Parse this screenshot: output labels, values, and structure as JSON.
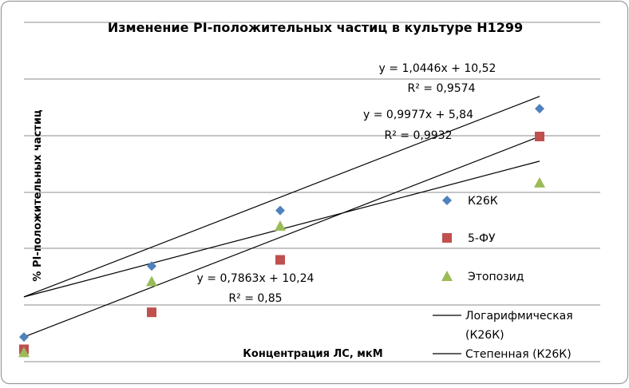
{
  "chart_data": {
    "type": "scatter",
    "title": "Изменение PI-положительных частиц в культуре H1299",
    "xlabel": "Концентрация ЛС, мкМ",
    "ylabel": "% PI-положительных частиц",
    "x": [
      0,
      1,
      2,
      3
    ],
    "ylim": [
      0,
      55
    ],
    "grid": true,
    "legend_position": "right",
    "series": [
      {
        "name": "К26К",
        "marker": "diamond",
        "color": "#4f81bd",
        "values": [
          4,
          15.5,
          24.5,
          41
        ]
      },
      {
        "name": "5-ФУ",
        "marker": "square",
        "color": "#c0504d",
        "values": [
          2,
          8,
          16.5,
          36.5
        ]
      },
      {
        "name": "Этопозид",
        "marker": "triangle",
        "color": "#9bbb59",
        "values": [
          1.5,
          13,
          22,
          29
        ]
      }
    ],
    "trendlines": [
      {
        "equation": "y = 1,0446x + 10,52",
        "r2": "R² = 0,9574",
        "start": 10.5,
        "end": 43
      },
      {
        "equation": "y = 0,9977x + 5,84",
        "r2": "R² = 0,9932",
        "start": 4,
        "end": 36.5
      },
      {
        "equation": "y = 0,7863x + 10,24",
        "r2": "R² = 0,85",
        "start": 10.5,
        "end": 32.5
      }
    ],
    "extra_legend": [
      {
        "label_lines": [
          "Логарифмическая",
          "(К26К)"
        ],
        "color": "#000000"
      },
      {
        "label_lines": [
          "Степенная (К26К)"
        ],
        "color": "#000000"
      }
    ]
  }
}
